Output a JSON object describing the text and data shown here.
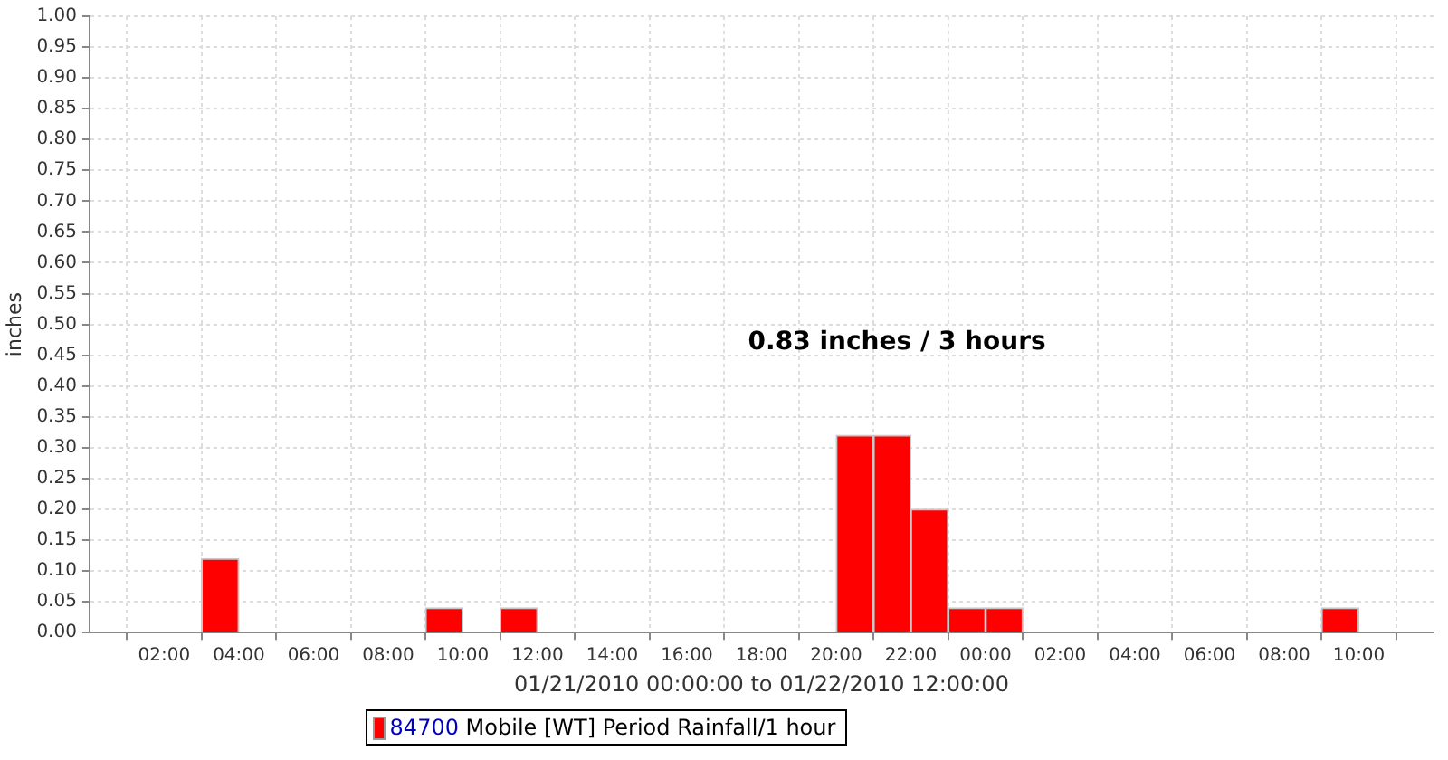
{
  "chart_data": {
    "type": "bar",
    "xlabel": "01/21/2010 00:00:00 to 01/22/2010 12:00:00",
    "ylabel": "inches",
    "annotations": [
      "0.83 inches / 3 hours"
    ],
    "x": [
      "2010-01-21T03:30",
      "2010-01-21T09:30",
      "2010-01-21T11:30",
      "2010-01-21T20:30",
      "2010-01-21T21:30",
      "2010-01-21T22:30",
      "2010-01-21T23:30",
      "2010-01-22T00:30",
      "2010-01-22T09:30"
    ],
    "series": [
      {
        "name": "84700 Mobile [WT] Period Rainfall/1 hour",
        "color": "#ff0000",
        "values": [
          0.12,
          0.04,
          0.04,
          0.32,
          0.32,
          0.2,
          0.04,
          0.04,
          0.04
        ]
      }
    ],
    "xlim": [
      "2010-01-21T00:00",
      "2010-01-22T12:00"
    ],
    "xticks": [
      {
        "value": "2010-01-21T02:00",
        "label": "02:00"
      },
      {
        "value": "2010-01-21T04:00",
        "label": "04:00"
      },
      {
        "value": "2010-01-21T06:00",
        "label": "06:00"
      },
      {
        "value": "2010-01-21T08:00",
        "label": "08:00"
      },
      {
        "value": "2010-01-21T10:00",
        "label": "10:00"
      },
      {
        "value": "2010-01-21T12:00",
        "label": "12:00"
      },
      {
        "value": "2010-01-21T14:00",
        "label": "14:00"
      },
      {
        "value": "2010-01-21T16:00",
        "label": "16:00"
      },
      {
        "value": "2010-01-21T18:00",
        "label": "18:00"
      },
      {
        "value": "2010-01-21T20:00",
        "label": "20:00"
      },
      {
        "value": "2010-01-21T22:00",
        "label": "22:00"
      },
      {
        "value": "2010-01-22T00:00",
        "label": "00:00"
      },
      {
        "value": "2010-01-22T02:00",
        "label": "02:00"
      },
      {
        "value": "2010-01-22T04:00",
        "label": "04:00"
      },
      {
        "value": "2010-01-22T06:00",
        "label": "06:00"
      },
      {
        "value": "2010-01-22T08:00",
        "label": "08:00"
      },
      {
        "value": "2010-01-22T10:00",
        "label": "10:00"
      }
    ],
    "ylim": [
      0,
      1
    ],
    "yticks": [
      {
        "value": 0,
        "label": "0.00"
      },
      {
        "value": 0.05,
        "label": "0.05"
      },
      {
        "value": 0.1,
        "label": "0.10"
      },
      {
        "value": 0.15,
        "label": "0.15"
      },
      {
        "value": 0.2,
        "label": "0.20"
      },
      {
        "value": 0.25,
        "label": "0.25"
      },
      {
        "value": 0.3,
        "label": "0.30"
      },
      {
        "value": 0.35,
        "label": "0.35"
      },
      {
        "value": 0.4,
        "label": "0.40"
      },
      {
        "value": 0.45,
        "label": "0.45"
      },
      {
        "value": 0.5,
        "label": "0.50"
      },
      {
        "value": 0.55,
        "label": "0.55"
      },
      {
        "value": 0.6,
        "label": "0.60"
      },
      {
        "value": 0.65,
        "label": "0.65"
      },
      {
        "value": 0.7,
        "label": "0.70"
      },
      {
        "value": 0.75,
        "label": "0.75"
      },
      {
        "value": 0.8,
        "label": "0.80"
      },
      {
        "value": 0.85,
        "label": "0.85"
      },
      {
        "value": 0.9,
        "label": "0.90"
      },
      {
        "value": 0.95,
        "label": "0.95"
      },
      {
        "value": 1,
        "label": "1.00"
      }
    ],
    "grid": true,
    "legend": "bottom"
  }
}
